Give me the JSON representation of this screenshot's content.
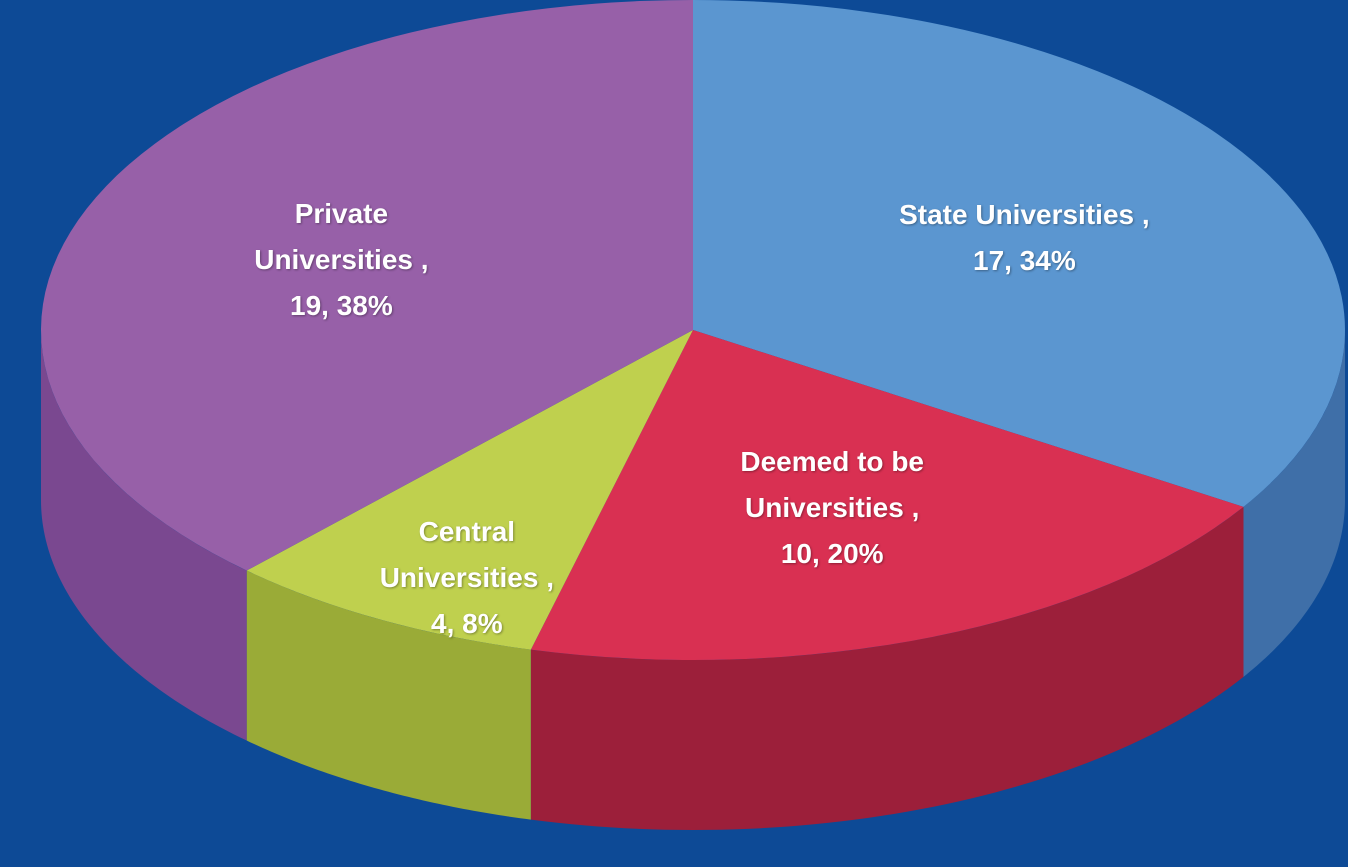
{
  "chart_data": {
    "type": "pie3d",
    "categories": [
      "State Universities ,",
      "Deemed to be Universities ,",
      "Central Universities ,",
      "Private Universities ,"
    ],
    "values": [
      17,
      10,
      4,
      19
    ],
    "value_labels": [
      "17, 34%",
      "10, 20%",
      "4, 8%",
      "19, 38%"
    ],
    "colors": [
      "#5b96d0",
      "#d93052",
      "#bfd04e",
      "#9760a8"
    ],
    "side_colors": [
      "#3f6fa8",
      "#9c1f3a",
      "#9aab37",
      "#7a4890"
    ],
    "background": "#0d4a96"
  }
}
